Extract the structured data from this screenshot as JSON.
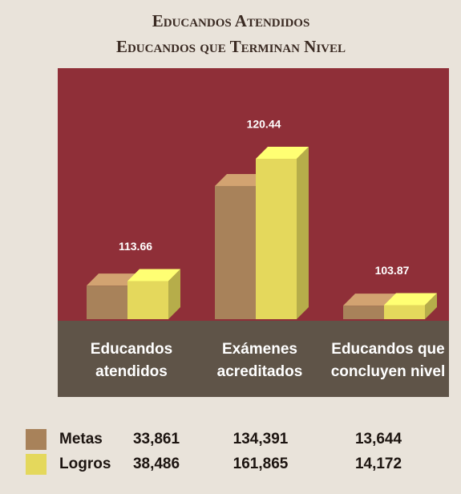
{
  "chart_data": {
    "type": "bar3d",
    "title": "Educandos Atendidos",
    "subtitle": "Educandos que Terminan Nivel",
    "categories": [
      [
        "Educandos",
        "atendidos"
      ],
      [
        "Exámenes",
        "acreditados"
      ],
      [
        "Educandos que",
        "concluyen nivel"
      ]
    ],
    "series": [
      {
        "name": "Metas",
        "color": "#a8825a",
        "values": [
          33861,
          134391,
          13644
        ],
        "value_labels": [
          "33,861",
          "134,391",
          "13,644"
        ]
      },
      {
        "name": "Logros",
        "color": "#e4d85c",
        "values": [
          38486,
          161865,
          14172
        ],
        "value_labels": [
          "38,486",
          "161,865",
          "14,172"
        ]
      }
    ],
    "percent": [
      113.66,
      120.44,
      103.87
    ]
  }
}
